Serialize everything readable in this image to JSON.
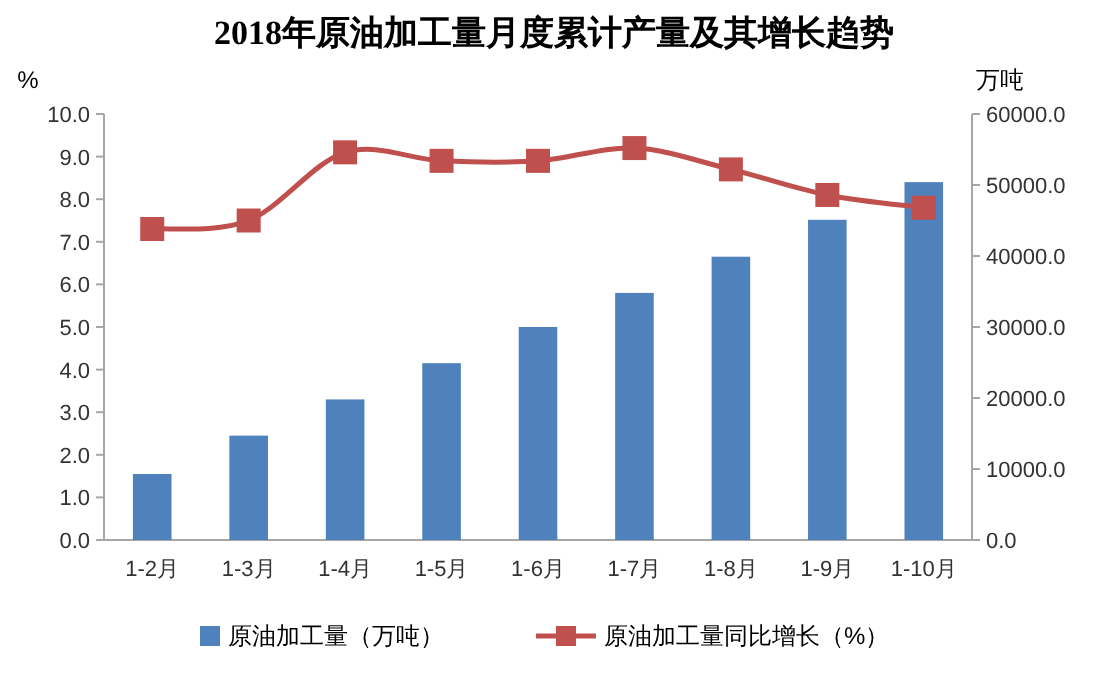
{
  "chart_data": {
    "type": "bar",
    "title": "2018年原油加工量月度累计产量及其增长趋势",
    "ylabel": "%",
    "y2label": "万吨",
    "categories": [
      "1-2月",
      "1-3月",
      "1-4月",
      "1-5月",
      "1-6月",
      "1-7月",
      "1-8月",
      "1-9月",
      "1-10月"
    ],
    "series": [
      {
        "name": "原油加工量（万吨）",
        "axis": "y2",
        "color": "#4f81bd",
        "values": [
          9300,
          14700,
          19800,
          24900,
          30000,
          34800,
          39900,
          45100,
          50400
        ]
      },
      {
        "name": "原油加工量同比增长（%）",
        "type": "line",
        "axis": "y",
        "color": "#c0504d",
        "marker": "square",
        "values": [
          7.3,
          7.5,
          9.1,
          8.9,
          8.9,
          9.2,
          8.7,
          8.1,
          7.8
        ]
      }
    ],
    "ylim": [
      0,
      10
    ],
    "yticks": [
      {
        "value": 0,
        "label": "0.0"
      },
      {
        "value": 1,
        "label": "1.0"
      },
      {
        "value": 2,
        "label": "2.0"
      },
      {
        "value": 3,
        "label": "3.0"
      },
      {
        "value": 4,
        "label": "4.0"
      },
      {
        "value": 5,
        "label": "5.0"
      },
      {
        "value": 6,
        "label": "6.0"
      },
      {
        "value": 7,
        "label": "7.0"
      },
      {
        "value": 8,
        "label": "8.0"
      },
      {
        "value": 9,
        "label": "9.0"
      },
      {
        "value": 10,
        "label": "10.0"
      }
    ],
    "y2lim": [
      0,
      60000
    ],
    "y2ticks": [
      {
        "value": 0,
        "label": "0.0"
      },
      {
        "value": 10000,
        "label": "10000.0"
      },
      {
        "value": 20000,
        "label": "20000.0"
      },
      {
        "value": 30000,
        "label": "30000.0"
      },
      {
        "value": 40000,
        "label": "40000.0"
      },
      {
        "value": 50000,
        "label": "50000.0"
      },
      {
        "value": 60000,
        "label": "60000.0"
      }
    ],
    "grid": false,
    "legend": "bottom"
  }
}
